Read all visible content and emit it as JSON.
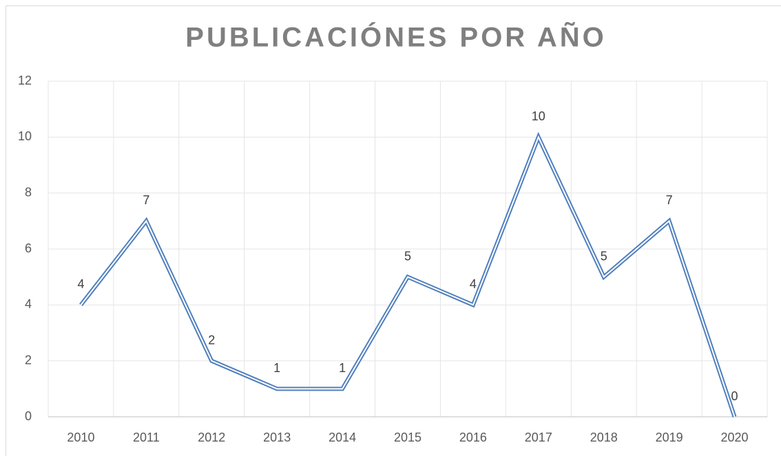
{
  "chart_data": {
    "type": "line",
    "title": "PUBLICACIÓNES POR AÑO",
    "categories": [
      "2010",
      "2011",
      "2012",
      "2013",
      "2014",
      "2015",
      "2016",
      "2017",
      "2018",
      "2019",
      "2020"
    ],
    "values": [
      4,
      7,
      2,
      1,
      1,
      5,
      4,
      10,
      5,
      7,
      0
    ],
    "color": "#4f7fbd",
    "ylim": [
      0,
      12
    ],
    "yticks": [
      0,
      2,
      4,
      6,
      8,
      10,
      12
    ],
    "grid": true
  }
}
